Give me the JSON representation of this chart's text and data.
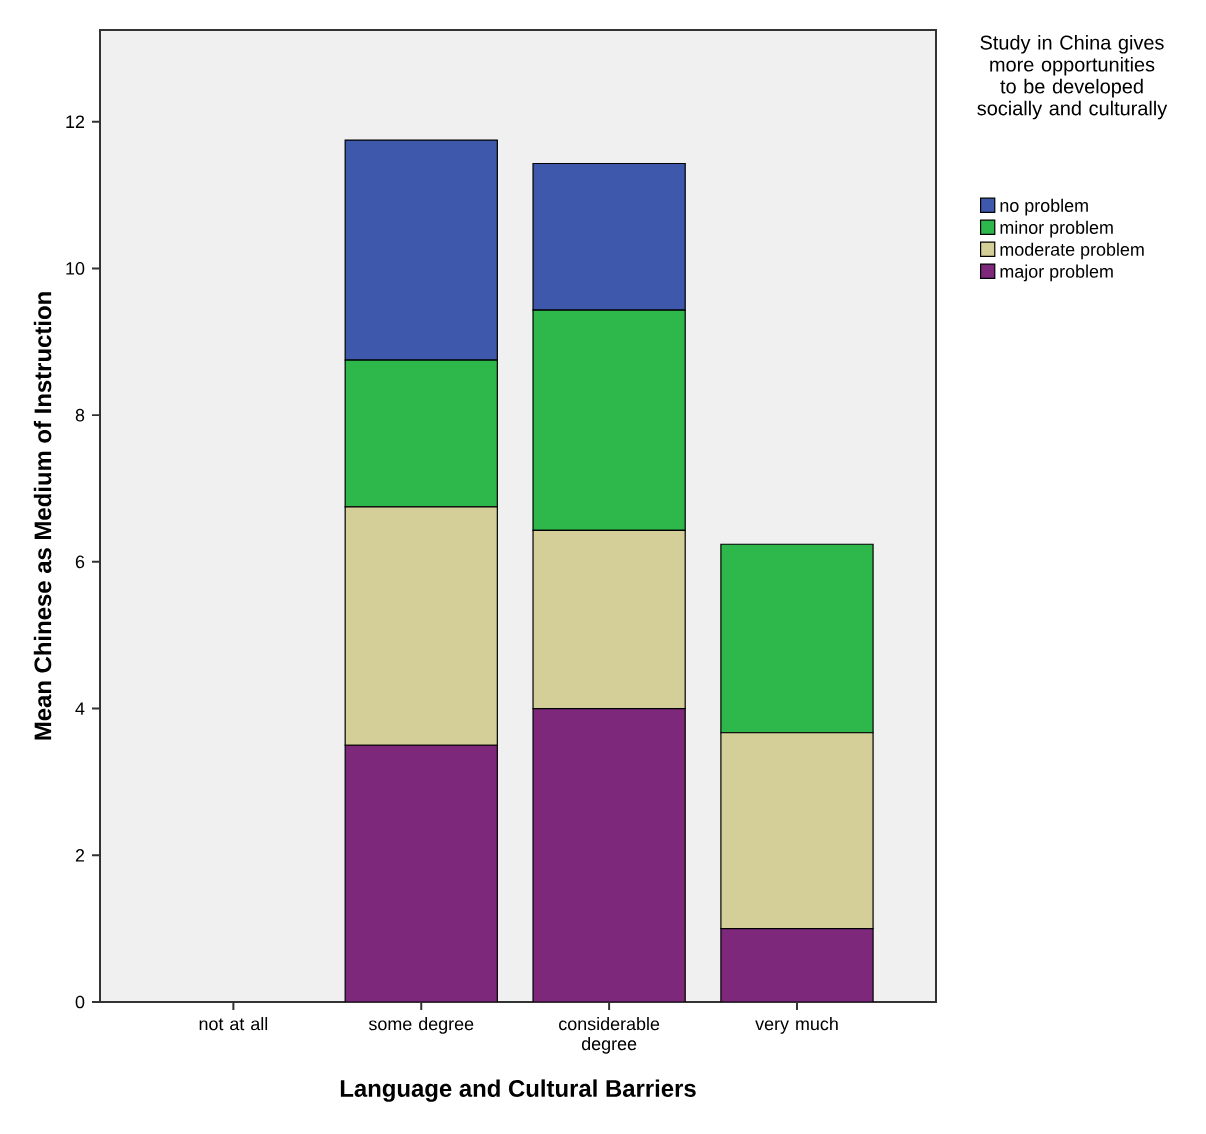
{
  "chart_data": {
    "type": "bar",
    "stacked": true,
    "xlabel": "Language and Cultural Barriers",
    "ylabel": "Mean Chinese as Medium of Instruction",
    "legend_title": "Study in China gives more opportunities to be developed socially and culturally",
    "legend": "right",
    "categories": [
      "not at all",
      "some degree",
      "considerable degree",
      "very much"
    ],
    "ylim": [
      0,
      13.25
    ],
    "yticks": [
      0,
      2,
      4,
      6,
      8,
      10,
      12
    ],
    "series": [
      {
        "name": "major problem",
        "color": "#7e287c",
        "values": [
          null,
          3.5,
          4.0,
          1.0
        ]
      },
      {
        "name": "moderate problem",
        "color": "#d4cf98",
        "values": [
          null,
          3.25,
          2.43,
          2.67
        ]
      },
      {
        "name": "minor problem",
        "color": "#2eb84b",
        "values": [
          null,
          2.0,
          3.0,
          2.57
        ]
      },
      {
        "name": "no problem",
        "color": "#3e58ac",
        "values": [
          null,
          3.0,
          2.0,
          null
        ]
      }
    ]
  }
}
